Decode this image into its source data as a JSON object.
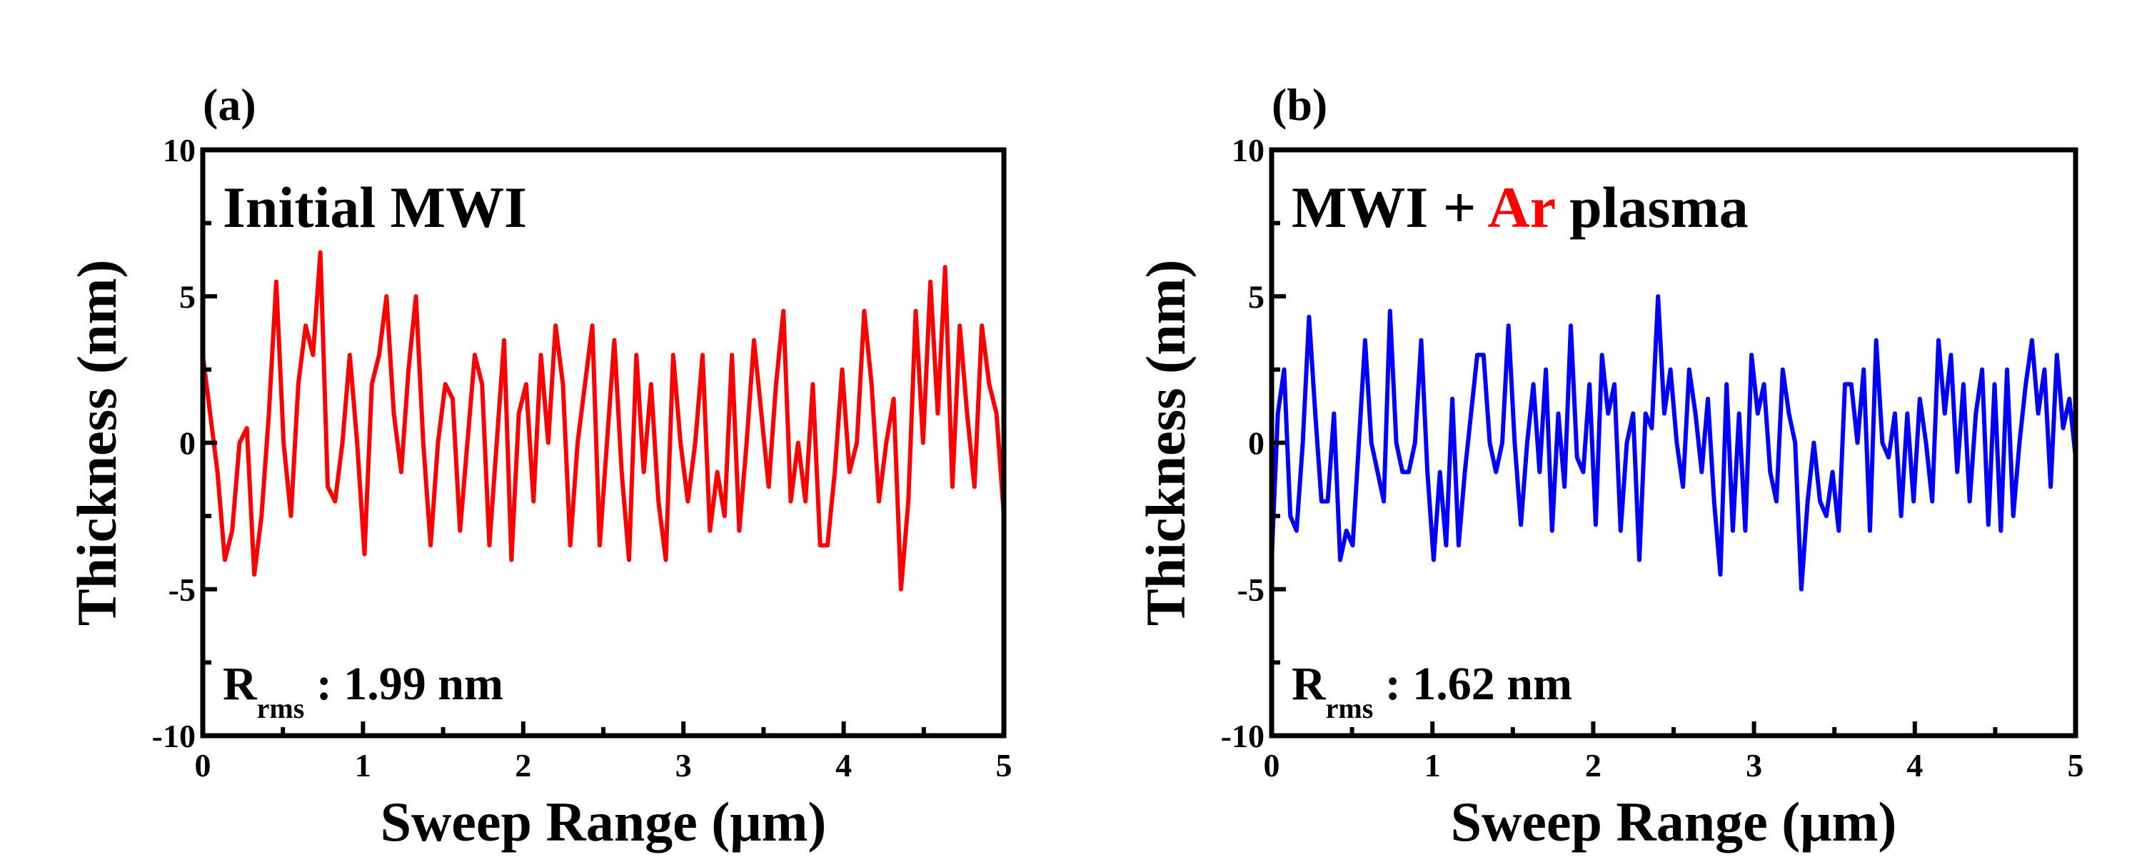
{
  "chart_data": [
    {
      "type": "line",
      "panel_label": "(a)",
      "title": "Initial MWI",
      "title_parts": [
        {
          "text": "Initial MWI",
          "color": "#000000"
        }
      ],
      "annotation": {
        "main": "R",
        "sub": "rms",
        "rest": " : 1.99 nm"
      },
      "xlabel": "Sweep Range (μm)",
      "ylabel": "Thickness (nm)",
      "xlim": [
        0,
        5
      ],
      "ylim": [
        -10,
        10
      ],
      "xticks": [
        "0",
        "1",
        "2",
        "3",
        "4",
        "5"
      ],
      "yticks": [
        "-10",
        "-5",
        "0",
        "5",
        "10"
      ],
      "grid": false,
      "series": [
        {
          "name": "Initial MWI",
          "color": "#ff0000",
          "values": [
            3,
            1,
            -1,
            -4,
            -3,
            0,
            0.5,
            -4.5,
            -2.5,
            1,
            5.5,
            0,
            -2.5,
            2,
            4,
            3,
            6.5,
            -1.5,
            -2,
            0,
            3,
            0,
            -3.8,
            2,
            3,
            5,
            1,
            -1,
            2.5,
            5,
            0,
            -3.5,
            0,
            2,
            1.5,
            -3,
            0,
            3,
            2,
            -3.5,
            0,
            3.5,
            -4,
            1,
            2,
            -2,
            3,
            0,
            4,
            2,
            -3.5,
            0,
            2,
            4,
            -3.5,
            0,
            3.5,
            -1,
            -4,
            3,
            -1,
            2,
            -2,
            -4,
            3,
            0,
            -2,
            0,
            3,
            -3,
            -1,
            -2.5,
            3,
            -3,
            0,
            3.5,
            1,
            -1.5,
            2,
            4.5,
            -2,
            0,
            -2,
            2,
            -3.5,
            -3.5,
            -1,
            2.5,
            -1,
            0,
            4.5,
            2,
            -2,
            0,
            1.5,
            -5,
            -2,
            4.5,
            0,
            5.5,
            1,
            6,
            -1.5,
            4,
            1,
            -1.5,
            4,
            2,
            1,
            -2.5
          ]
        }
      ]
    },
    {
      "type": "line",
      "panel_label": "(b)",
      "title": "MWI + Ar plasma",
      "title_parts": [
        {
          "text": "MWI + ",
          "color": "#000000"
        },
        {
          "text": "Ar",
          "color": "#ff0000"
        },
        {
          "text": " plasma",
          "color": "#000000"
        }
      ],
      "annotation": {
        "main": "R",
        "sub": "rms",
        "rest": " : 1.62 nm"
      },
      "xlabel": "Sweep Range (μm)",
      "ylabel": "Thickness (nm)",
      "xlim": [
        0,
        5
      ],
      "ylim": [
        -10,
        10
      ],
      "xticks": [
        "0",
        "1",
        "2",
        "3",
        "4",
        "5"
      ],
      "yticks": [
        "-10",
        "-5",
        "0",
        "5",
        "10"
      ],
      "grid": false,
      "series": [
        {
          "name": "MWI + Ar plasma",
          "color": "#0000ff",
          "values": [
            -4,
            1,
            2.5,
            -2.5,
            -3,
            0,
            4.3,
            1,
            -2,
            -2,
            1,
            -4,
            -3,
            -3.5,
            0,
            3.5,
            0,
            -1,
            -2,
            4.5,
            0,
            -1,
            -1,
            0,
            3.5,
            -1,
            -4,
            -1,
            -3.5,
            1.5,
            -3.5,
            -1,
            1,
            3,
            3,
            0,
            -1,
            0,
            4,
            0,
            -2.8,
            0,
            2,
            -1,
            2.5,
            -3,
            1,
            -1.5,
            4,
            -0.5,
            -1,
            2,
            -2.8,
            3,
            1,
            2,
            -3,
            0,
            1,
            -4,
            1,
            0.5,
            5,
            1,
            2.5,
            0,
            -1.5,
            2.5,
            1,
            -1,
            1.5,
            -2,
            -4.5,
            2,
            -3,
            1,
            -3,
            3,
            1,
            2,
            -1,
            -2,
            2.5,
            1,
            0,
            -5,
            -2,
            0,
            -2,
            -2.5,
            -1,
            -3,
            2,
            2,
            0,
            2.5,
            -3,
            3.5,
            0,
            -0.5,
            1,
            -2.5,
            1,
            -2,
            1.5,
            0,
            -2,
            3.5,
            1,
            3,
            -1,
            2,
            -2,
            1,
            2.5,
            -2.8,
            2,
            -3,
            2.5,
            -2.5,
            0,
            2,
            3.5,
            1,
            2.5,
            -1.5,
            3,
            0.5,
            1.5,
            -0.5
          ]
        }
      ]
    }
  ]
}
